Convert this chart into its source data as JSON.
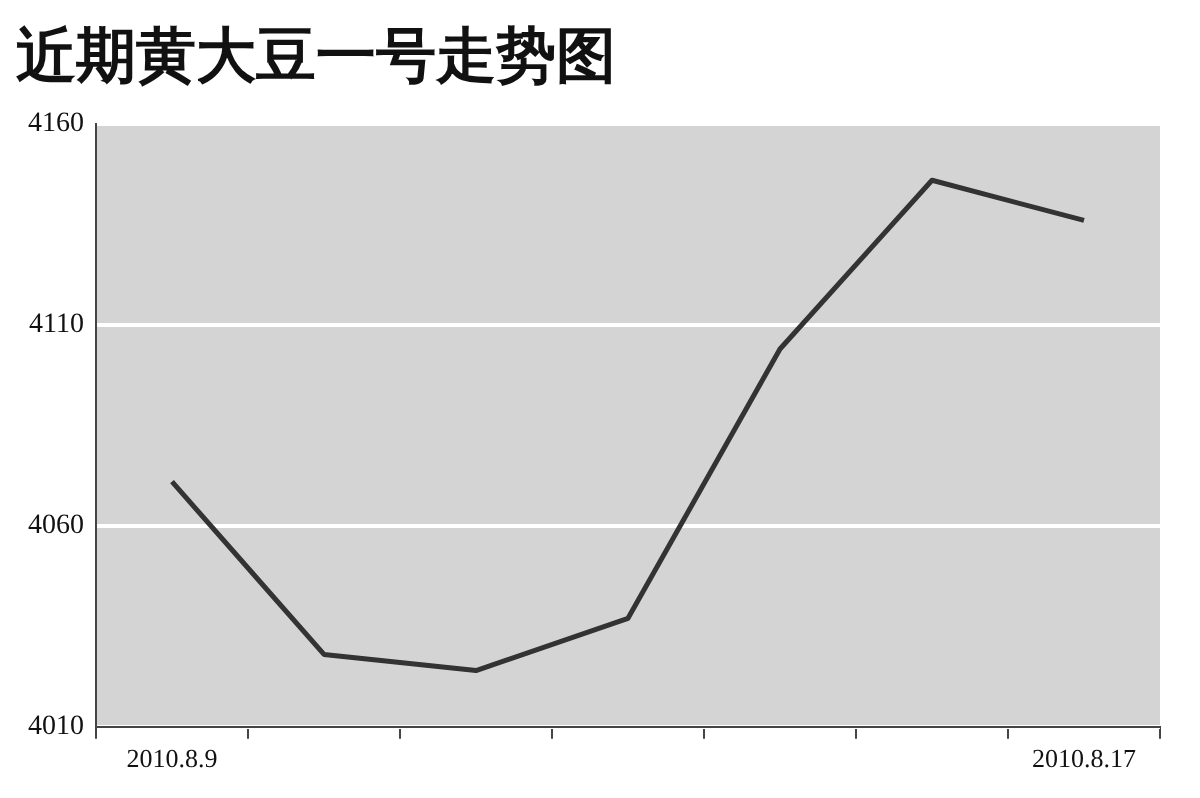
{
  "chart_data": {
    "type": "line",
    "title": "近期黄大豆一号走势图",
    "categories": [
      "2010.8.9",
      null,
      null,
      null,
      null,
      null,
      "2010.8.17"
    ],
    "series": [
      {
        "color": "#333333",
        "values": [
          4071,
          4028,
          4024,
          4037,
          4104,
          4146,
          4136
        ]
      }
    ],
    "ylim": [
      4010,
      4160
    ],
    "yticks": [
      4010,
      4060,
      4110,
      4160
    ],
    "grid": "y",
    "legend": false,
    "marker": "none",
    "line_style": "solid"
  }
}
